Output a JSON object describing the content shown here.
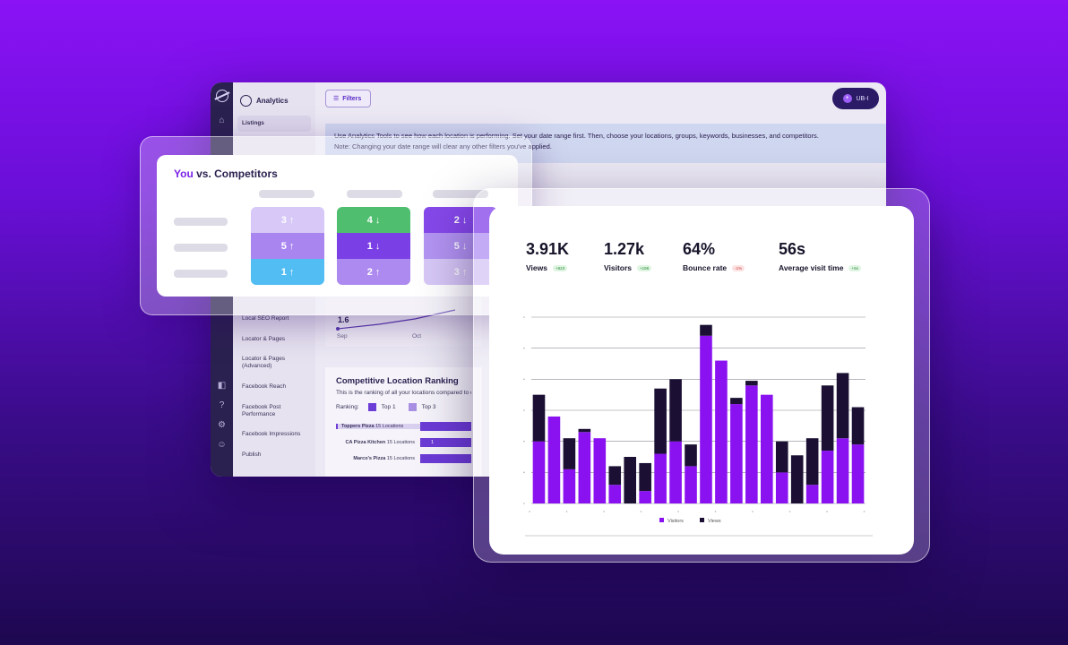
{
  "app": {
    "title": "Analytics",
    "filters_label": "Filters",
    "user_label": "UB-I",
    "banner_line1": "Use Analytics Tools to see how each location is performing. Set your date range first.  Then, choose your locations, groups, keywords, businesses, and competitors.",
    "banner_line2": "Note: Changing your date range will clear any other filters you've applied.",
    "sidebar": [
      {
        "label": "Listings",
        "active": true
      },
      {
        "label": "Local SEO Report"
      },
      {
        "label": "Locator & Pages"
      },
      {
        "label": "Locator & Pages (Advanced)"
      },
      {
        "label": "Facebook Reach"
      },
      {
        "label": "Facebook Post Performance"
      },
      {
        "label": "Facebook Impressions"
      },
      {
        "label": "Publish"
      }
    ],
    "line_chart": {
      "value_label": "1.6",
      "ticks": [
        "Sep",
        "Oct"
      ]
    },
    "ranking": {
      "title": "Competitive Location Ranking",
      "subtitle": "This is the ranking of all your locations compared to competitors",
      "legend_label": "Ranking:",
      "legend": [
        {
          "label": "Top 1",
          "color": "#6c3cd6"
        },
        {
          "label": "Top 3",
          "color": "#a98fe3"
        }
      ],
      "rows": [
        {
          "name": "Toppers Pizza",
          "count": "15 Locations",
          "bar": ""
        },
        {
          "name": "CA Pizza Kitchen",
          "count": "15 Locations",
          "bar": "1"
        },
        {
          "name": "Marco's Pizza",
          "count": "15 Locations",
          "bar": ""
        }
      ]
    }
  },
  "competitors": {
    "title_you": "You",
    "title_rest": " vs. Competitors",
    "columns": [
      {
        "cells": [
          {
            "value": "3",
            "dir": "↑",
            "color": "#d7c8f7"
          },
          {
            "value": "5",
            "dir": "↑",
            "color": "#a985f0"
          },
          {
            "value": "1",
            "dir": "↑",
            "color": "#52bdf2"
          }
        ]
      },
      {
        "cells": [
          {
            "value": "4",
            "dir": "↓",
            "color": "#4fbf6f"
          },
          {
            "value": "1",
            "dir": "↓",
            "color": "#7b3fe6"
          },
          {
            "value": "2",
            "dir": "↑",
            "color": "#ad8af0"
          }
        ]
      },
      {
        "cells": [
          {
            "value": "2",
            "dir": "↓",
            "color": "#8648ea"
          },
          {
            "value": "5",
            "dir": "↓",
            "color": "#b394f2"
          },
          {
            "value": "3",
            "dir": "↑",
            "color": "#d7c8f7"
          }
        ]
      }
    ]
  },
  "kpis": [
    {
      "value": "3.91K",
      "label": "Views",
      "delta": "+823",
      "trend": "up"
    },
    {
      "value": "1.27k",
      "label": "Visitors",
      "delta": "+198",
      "trend": "up"
    },
    {
      "value": "64%",
      "label": "Bounce rate",
      "delta": "-1%",
      "trend": "down"
    },
    {
      "value": "56s",
      "label": "Average visit time",
      "delta": "+5s",
      "trend": "up"
    }
  ],
  "chart_data": {
    "type": "bar",
    "stacked": true,
    "ylim": [
      0,
      6
    ],
    "grid": true,
    "legend_position": "bottom",
    "series": [
      {
        "name": "Visitors",
        "color": "#8a12f0",
        "values": [
          2.0,
          2.8,
          1.1,
          2.3,
          2.1,
          0.6,
          0,
          0.4,
          1.6,
          2.0,
          1.2,
          5.4,
          4.6,
          3.2,
          3.8,
          3.5,
          1.0,
          0,
          0.6,
          1.7,
          2.1,
          1.9
        ]
      },
      {
        "name": "Views",
        "color": "#1b1033",
        "values": [
          1.5,
          0,
          1.0,
          0.1,
          0,
          0.6,
          1.5,
          0.9,
          2.1,
          2.0,
          0.7,
          0.35,
          0,
          0.2,
          0.15,
          0,
          1.0,
          1.55,
          1.5,
          2.1,
          2.1,
          1.2
        ]
      }
    ]
  }
}
